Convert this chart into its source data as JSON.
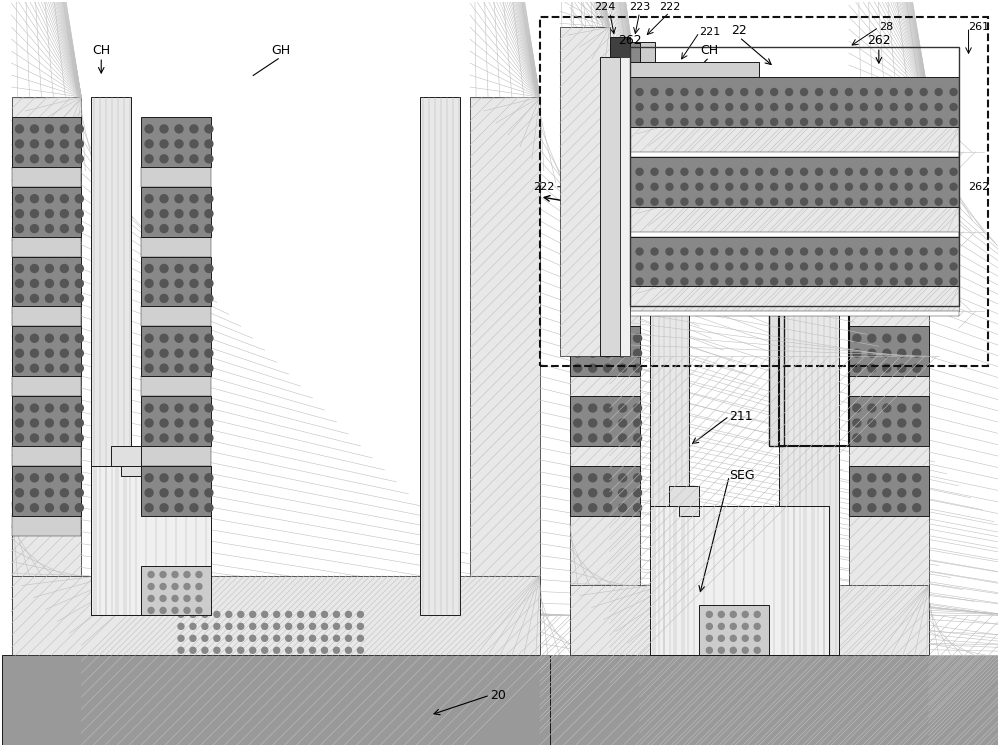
{
  "fig_width": 10.0,
  "fig_height": 7.45,
  "bg_color": "#ffffff",
  "gray_substrate": "#aaaaaa",
  "light_gray": "#d8d8d8",
  "cross_hatch_color": "#c8c8c8",
  "dark_block_color": "#808080",
  "white_stripe_color": "#ffffff",
  "medium_gray": "#b8b8b8",
  "outline_color": "#1a1a1a",
  "labels": {
    "CH_left": "CH",
    "GH": "GH",
    "CH_right": "CH",
    "22": "22",
    "262_left": "262",
    "262_right": "262",
    "211": "211",
    "SEG": "SEG",
    "20": "20",
    "224": "224",
    "223": "223",
    "222_top": "222",
    "221": "221",
    "28": "28",
    "261": "261",
    "222_left": "222",
    "262_zoom": "262"
  }
}
